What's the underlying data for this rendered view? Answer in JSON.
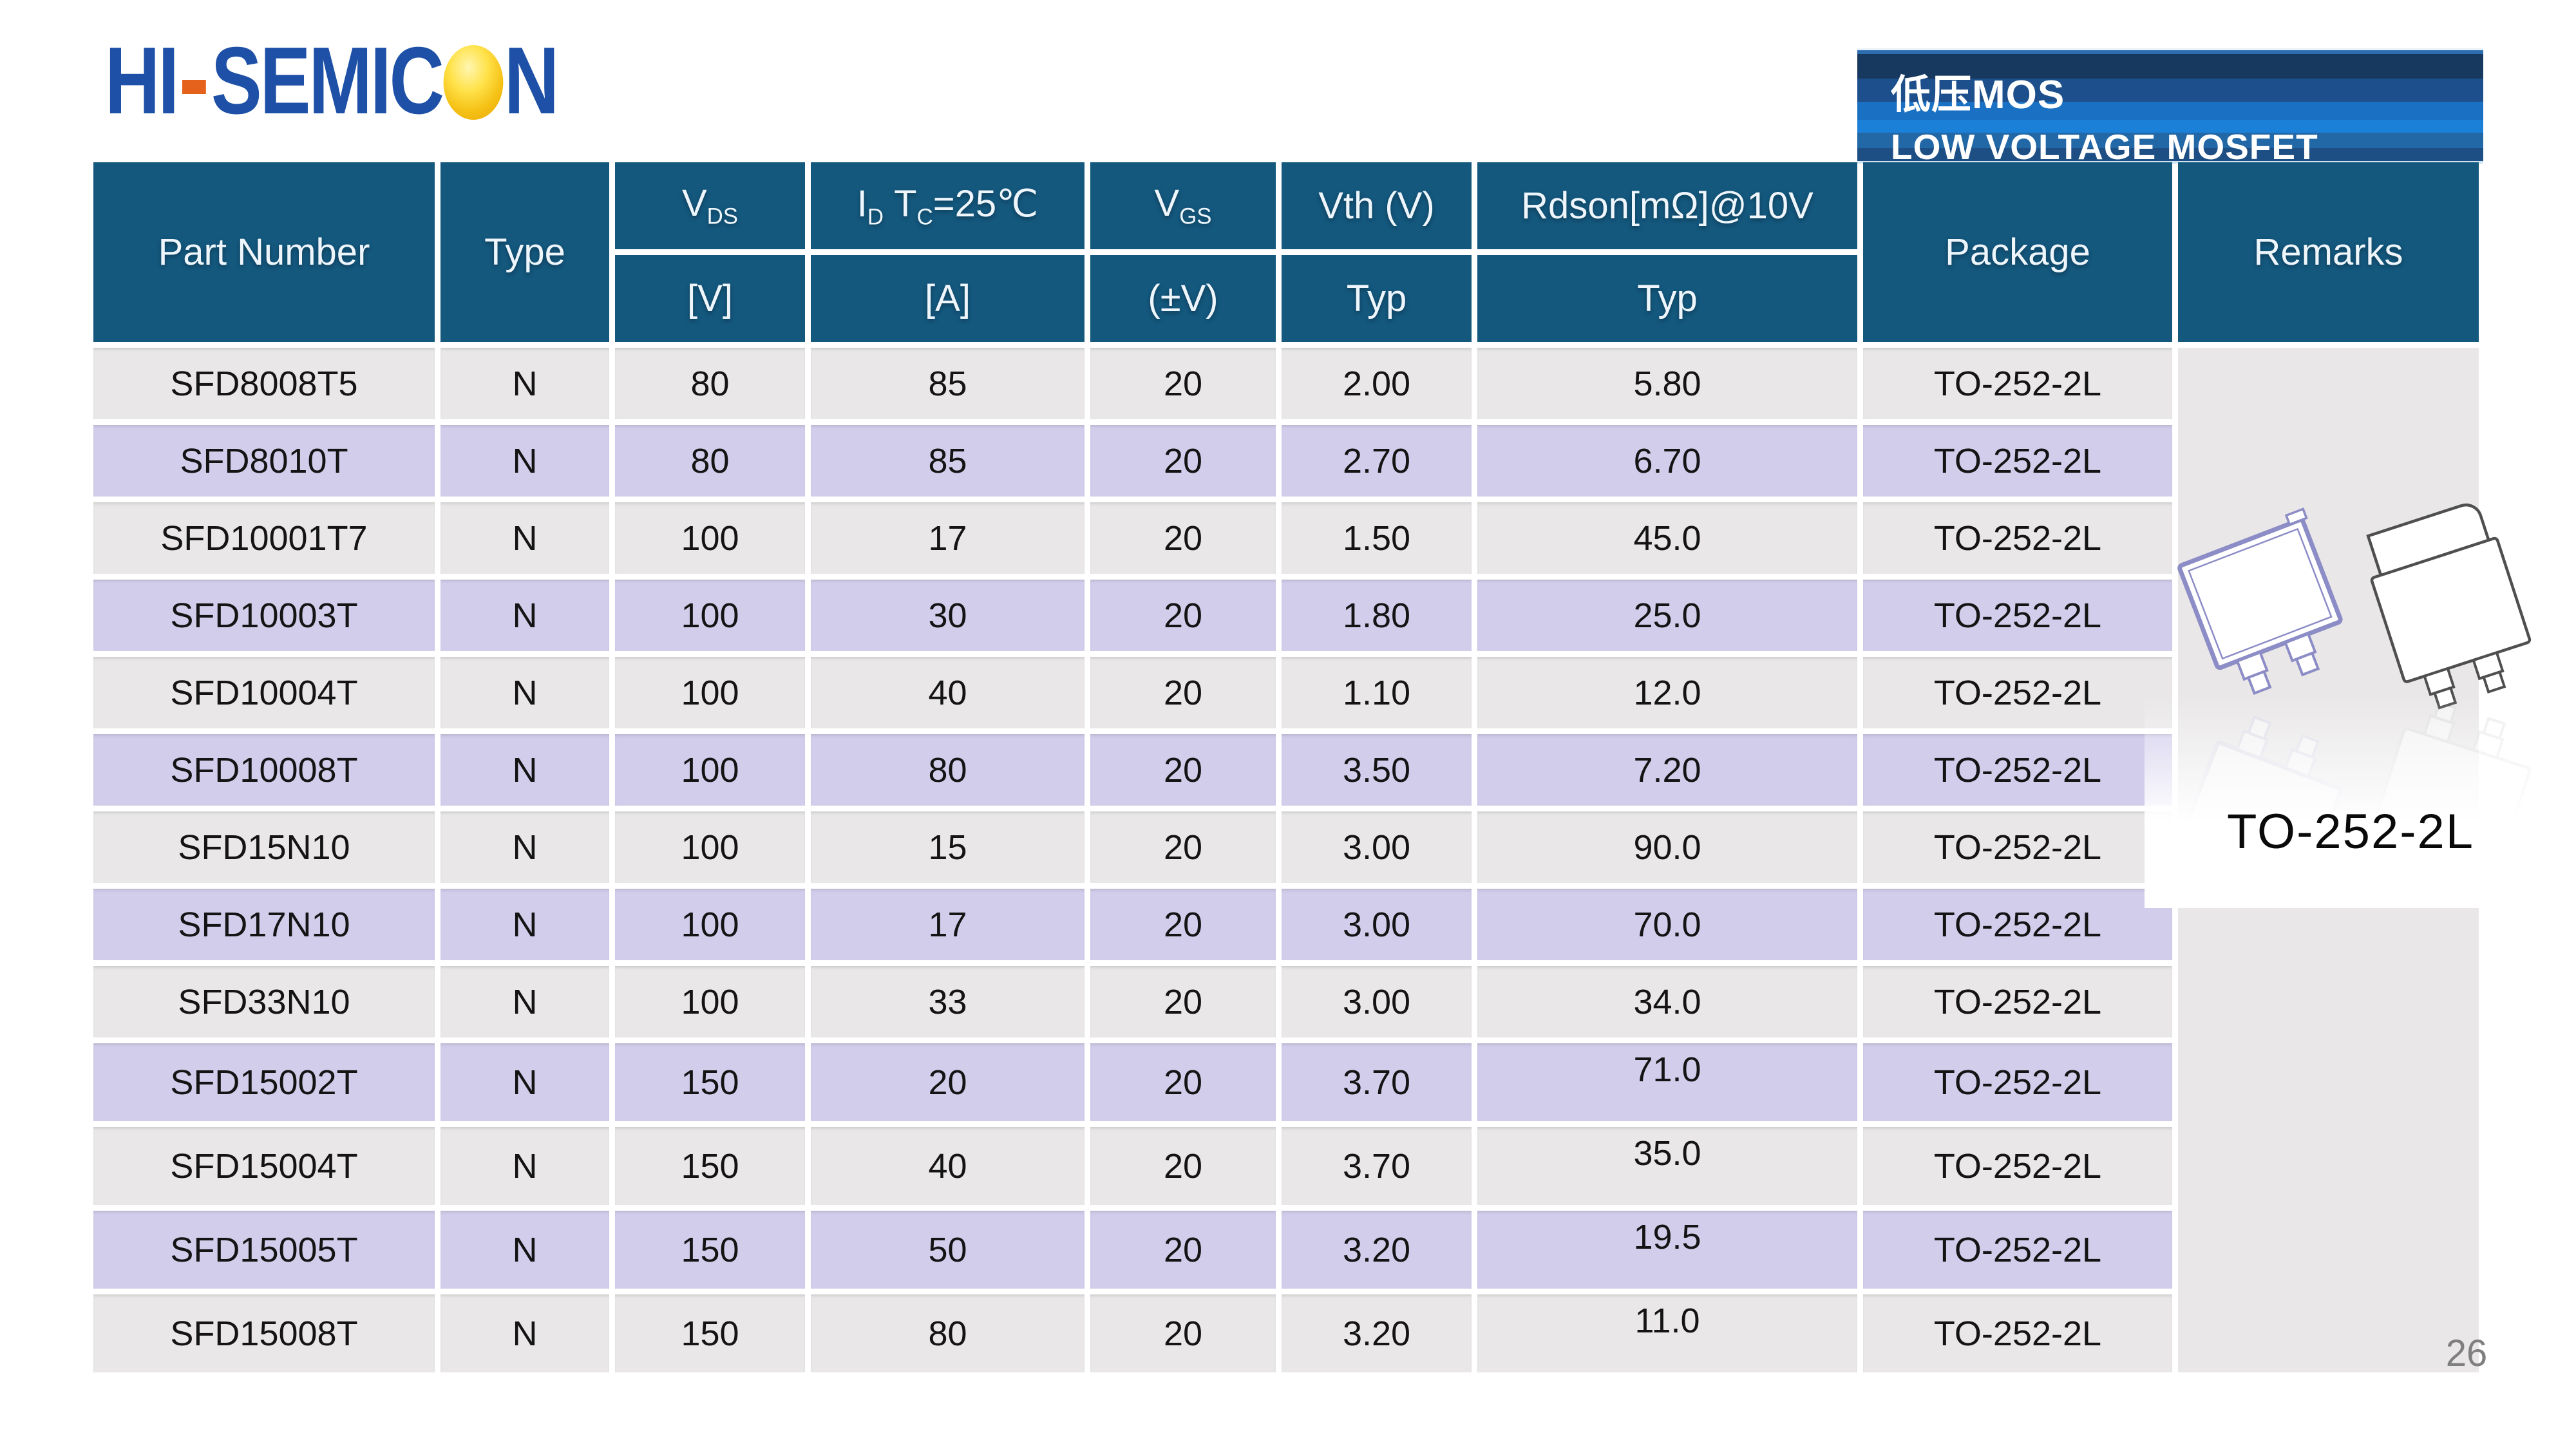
{
  "brand": {
    "part1": "HI",
    "part2": "SEMIC",
    "part3": "N",
    "blue": "#1d50a6",
    "dash_color": "#e5621c",
    "ball_color": "#f5c115"
  },
  "banner": {
    "line1": "低压MOS",
    "line2": "LOW VOLTAGE MOSFET"
  },
  "table": {
    "headers": {
      "part_number": "Part Number",
      "type": "Type",
      "vds_main": "V",
      "vds_sub": "DS",
      "vds_unit": "[V]",
      "id_main": "I",
      "id_sub": "D",
      "tc_main": "T",
      "tc_sub": "C",
      "tc_cond": "=25℃",
      "id_unit": "[A]",
      "vgs_main": "V",
      "vgs_sub": "GS",
      "vgs_unit": "(±V)",
      "vth": "Vth (V)",
      "vth_typ": "Typ",
      "rdson": "Rdson[mΩ]@10V",
      "rdson_typ": "Typ",
      "package": "Package",
      "remarks": "Remarks"
    },
    "rows": [
      {
        "part": "SFD8008T5",
        "type": "N",
        "vds": "80",
        "id": "85",
        "vgs": "20",
        "vth": "2.00",
        "rdson": "5.80",
        "package": "TO-252-2L"
      },
      {
        "part": "SFD8010T",
        "type": "N",
        "vds": "80",
        "id": "85",
        "vgs": "20",
        "vth": "2.70",
        "rdson": "6.70",
        "package": "TO-252-2L"
      },
      {
        "part": "SFD10001T7",
        "type": "N",
        "vds": "100",
        "id": "17",
        "vgs": "20",
        "vth": "1.50",
        "rdson": "45.0",
        "package": "TO-252-2L"
      },
      {
        "part": "SFD10003T",
        "type": "N",
        "vds": "100",
        "id": "30",
        "vgs": "20",
        "vth": "1.80",
        "rdson": "25.0",
        "package": "TO-252-2L"
      },
      {
        "part": "SFD10004T",
        "type": "N",
        "vds": "100",
        "id": "40",
        "vgs": "20",
        "vth": "1.10",
        "rdson": "12.0",
        "package": "TO-252-2L"
      },
      {
        "part": "SFD10008T",
        "type": "N",
        "vds": "100",
        "id": "80",
        "vgs": "20",
        "vth": "3.50",
        "rdson": "7.20",
        "package": "TO-252-2L"
      },
      {
        "part": "SFD15N10",
        "type": "N",
        "vds": "100",
        "id": "15",
        "vgs": "20",
        "vth": "3.00",
        "rdson": "90.0",
        "package": "TO-252-2L"
      },
      {
        "part": "SFD17N10",
        "type": "N",
        "vds": "100",
        "id": "17",
        "vgs": "20",
        "vth": "3.00",
        "rdson": "70.0",
        "package": "TO-252-2L"
      },
      {
        "part": "SFD33N10",
        "type": "N",
        "vds": "100",
        "id": "33",
        "vgs": "20",
        "vth": "3.00",
        "rdson": "34.0",
        "package": "TO-252-2L"
      },
      {
        "part": "SFD15002T",
        "type": "N",
        "vds": "150",
        "id": "20",
        "vgs": "20",
        "vth": "3.70",
        "rdson": "71.0",
        "package": "TO-252-2L"
      },
      {
        "part": "SFD15004T",
        "type": "N",
        "vds": "150",
        "id": "40",
        "vgs": "20",
        "vth": "3.70",
        "rdson": "35.0",
        "package": "TO-252-2L"
      },
      {
        "part": "SFD15005T",
        "type": "N",
        "vds": "150",
        "id": "50",
        "vgs": "20",
        "vth": "3.20",
        "rdson": "19.5",
        "package": "TO-252-2L"
      },
      {
        "part": "SFD15008T",
        "type": "N",
        "vds": "150",
        "id": "80",
        "vgs": "20",
        "vth": "3.20",
        "rdson": "11.0",
        "package": "TO-252-2L"
      }
    ]
  },
  "remarks": {
    "package_label": "TO-252-2L"
  },
  "footer": {
    "page_number": "26"
  },
  "colors": {
    "header_bg": "#14587e",
    "row_gray": "#e9e7e7",
    "row_lavender": "#d3cdec",
    "banner_bright_blue": "#1b80d8"
  }
}
